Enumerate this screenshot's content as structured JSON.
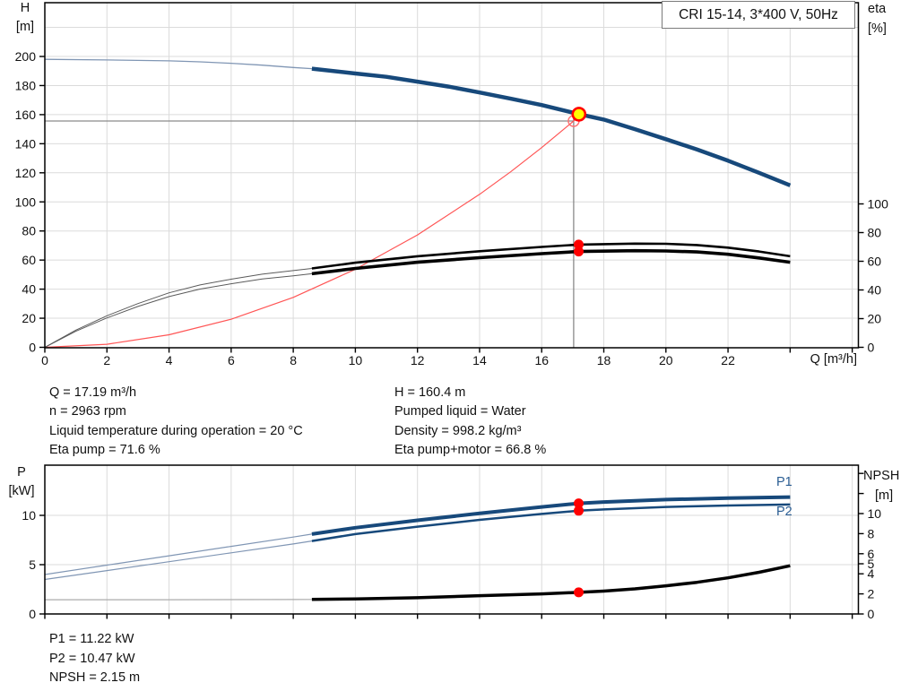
{
  "title_box": {
    "text": "CRI 15-14, 3*400 V, 50Hz"
  },
  "axis_titles": {
    "h": "H",
    "h_unit": "[m]",
    "eta": "eta",
    "eta_unit": "[%]",
    "q": "Q [m³/h]",
    "p": "P",
    "p_unit": "[kW]",
    "npsh": "NPSH",
    "npsh_unit": "[m]"
  },
  "curve_labels": {
    "p1": "P1",
    "p2": "P2"
  },
  "operating_point_info": {
    "left": [
      "Q = 17.19 m³/h",
      "n = 2963 rpm",
      "Liquid temperature during operation = 20 °C",
      "Eta pump = 71.6 %"
    ],
    "right": [
      "H = 160.4 m",
      "Pumped liquid = Water",
      "Density = 998.2 kg/m³",
      "Eta pump+motor = 66.8 %"
    ]
  },
  "footer_info": [
    "P1 = 11.22 kW",
    "P2 = 10.47 kW",
    "NPSH = 2.15 m"
  ],
  "colors": {
    "curve_blue": "#17497B",
    "thin_blue": "#8096B4",
    "black": "#000000",
    "red": "#FF0000",
    "light_red": "#FF7070",
    "gray_line": "#8A8A8A",
    "grid": "#DBDBDB",
    "yellow": "#FFFF00",
    "label_blue": "#2A5D93",
    "thin_gray": "#ABABAB",
    "thin_dark": "#5A5A5A"
  },
  "duty_point": {
    "Q_m3h": 17.19,
    "H_m": 160.4,
    "n_rpm": 2963,
    "eta_pump_pct": 71.6,
    "eta_pump_motor_pct": 66.8,
    "P1_kW": 11.22,
    "P2_kW": 10.47,
    "NPSH_m": 2.15
  },
  "chart_data": [
    {
      "type": "line",
      "title": "CRI 15-14, 3*400 V, 50Hz",
      "xlabel": "Q [m³/h]",
      "ylabel_left": "H [m]",
      "ylabel_right": "eta [%]",
      "x_range": [
        0,
        26.2
      ],
      "y_left_range": [
        0,
        237
      ],
      "y_right_range": [
        0,
        240
      ],
      "grid": {
        "x": [
          2,
          4,
          6,
          8,
          10,
          12,
          14,
          16,
          18,
          20,
          22,
          24,
          26
        ],
        "left": [
          20,
          40,
          60,
          80,
          100,
          120,
          140,
          160,
          180,
          200,
          220
        ]
      },
      "ticks": {
        "x": [
          {
            "v": 0,
            "l": "0"
          },
          {
            "v": 2,
            "l": "2"
          },
          {
            "v": 4,
            "l": "4"
          },
          {
            "v": 6,
            "l": "6"
          },
          {
            "v": 8,
            "l": "8"
          },
          {
            "v": 10,
            "l": "10"
          },
          {
            "v": 12,
            "l": "12"
          },
          {
            "v": 14,
            "l": "14"
          },
          {
            "v": 16,
            "l": "16"
          },
          {
            "v": 18,
            "l": "18"
          },
          {
            "v": 20,
            "l": "20"
          },
          {
            "v": 22,
            "l": "22"
          },
          {
            "v": 24,
            "l": ""
          },
          {
            "v": 26,
            "l": ""
          }
        ],
        "left": [
          {
            "v": 0,
            "l": "0"
          },
          {
            "v": 20,
            "l": "20"
          },
          {
            "v": 40,
            "l": "40"
          },
          {
            "v": 60,
            "l": "60"
          },
          {
            "v": 80,
            "l": "80"
          },
          {
            "v": 100,
            "l": "100"
          },
          {
            "v": 120,
            "l": "120"
          },
          {
            "v": 140,
            "l": "140"
          },
          {
            "v": 160,
            "l": "160"
          },
          {
            "v": 180,
            "l": "180"
          },
          {
            "v": 200,
            "l": "200"
          }
        ],
        "right": [
          {
            "v": 0,
            "l": "0"
          },
          {
            "v": 20,
            "l": "20"
          },
          {
            "v": 40,
            "l": "40"
          },
          {
            "v": 60,
            "l": "60"
          },
          {
            "v": 80,
            "l": "80"
          },
          {
            "v": 100,
            "l": "100"
          }
        ]
      },
      "series": [
        {
          "name": "crosshair-vertical",
          "axis": "left",
          "color": "#8A8A8A",
          "width": 1.3,
          "points": [
            [
              17.03,
              0
            ],
            [
              17.03,
              158
            ]
          ]
        },
        {
          "name": "crosshair-horizontal",
          "axis": "left",
          "color": "#8A8A8A",
          "width": 1.3,
          "points": [
            [
              0,
              155.6
            ],
            [
              17.03,
              155.6
            ]
          ]
        },
        {
          "name": "system-curve",
          "axis": "left",
          "color": "#FF5555",
          "width": 1.2,
          "points": [
            [
              0,
              0
            ],
            [
              2,
              2.1
            ],
            [
              4,
              8.6
            ],
            [
              6,
              19.3
            ],
            [
              8,
              34.3
            ],
            [
              10,
              53.7
            ],
            [
              12,
              77.3
            ],
            [
              14,
              105.2
            ],
            [
              15,
              120.7
            ],
            [
              16,
              137.3
            ],
            [
              17.03,
              155.6
            ],
            [
              17.4,
              162.4
            ]
          ]
        },
        {
          "name": "eta-pump-thin",
          "axis": "right",
          "color": "#5A5A5A",
          "width": 1,
          "points": [
            [
              0,
              0
            ],
            [
              1,
              12
            ],
            [
              2,
              22
            ],
            [
              3,
              30.5
            ],
            [
              4,
              38
            ],
            [
              5,
              43.5
            ],
            [
              6,
              47.5
            ],
            [
              7,
              51
            ],
            [
              8,
              53.5
            ],
            [
              8.6,
              55
            ]
          ]
        },
        {
          "name": "eta-pump-motor-thin",
          "axis": "right",
          "color": "#5A5A5A",
          "width": 1,
          "points": [
            [
              0,
              0
            ],
            [
              1,
              11.2
            ],
            [
              2,
              20.5
            ],
            [
              3,
              28.5
            ],
            [
              4,
              35.4
            ],
            [
              5,
              40.6
            ],
            [
              6,
              44.3
            ],
            [
              7,
              47.6
            ],
            [
              8,
              49.9
            ],
            [
              8.6,
              51.3
            ]
          ]
        },
        {
          "name": "eta-pump-thick",
          "axis": "right",
          "color": "#000000",
          "width": 2.6,
          "points": [
            [
              8.6,
              55
            ],
            [
              10,
              59
            ],
            [
              12,
              63.5
            ],
            [
              14,
              67
            ],
            [
              16,
              70
            ],
            [
              17.19,
              71.6
            ],
            [
              19,
              72.3
            ],
            [
              20,
              72.2
            ],
            [
              21,
              71.3
            ],
            [
              22,
              69.5
            ],
            [
              23,
              66.8
            ],
            [
              24,
              63.5
            ]
          ]
        },
        {
          "name": "eta-pump-motor-thick",
          "axis": "right",
          "color": "#000000",
          "width": 3.6,
          "points": [
            [
              8.6,
              51.3
            ],
            [
              10,
              55
            ],
            [
              12,
              59.3
            ],
            [
              14,
              62.5
            ],
            [
              16,
              65.3
            ],
            [
              17.19,
              66.8
            ],
            [
              19,
              67.4
            ],
            [
              20,
              67.2
            ],
            [
              21,
              66.5
            ],
            [
              22,
              64.9
            ],
            [
              23,
              62.3
            ],
            [
              24,
              59.3
            ]
          ]
        },
        {
          "name": "pump-curve-thin",
          "axis": "left",
          "color": "#8096B4",
          "width": 1.3,
          "points": [
            [
              0,
              198
            ],
            [
              2,
              197.6
            ],
            [
              4,
              197
            ],
            [
              5,
              196.3
            ],
            [
              6,
              195.3
            ],
            [
              7,
              194
            ],
            [
              8,
              192.4
            ],
            [
              8.6,
              191.6
            ]
          ]
        },
        {
          "name": "pump-curve-thick",
          "axis": "left",
          "color": "#17497B",
          "width": 4.5,
          "points": [
            [
              8.6,
              191.6
            ],
            [
              10,
              188.3
            ],
            [
              11,
              186
            ],
            [
              12,
              182.7
            ],
            [
              13,
              179.3
            ],
            [
              14,
              175.2
            ],
            [
              15,
              171
            ],
            [
              16,
              166.6
            ],
            [
              17.19,
              160.4
            ],
            [
              18,
              156.6
            ],
            [
              19,
              150
            ],
            [
              20,
              143.1
            ],
            [
              21,
              136
            ],
            [
              22,
              128.3
            ],
            [
              23,
              120
            ],
            [
              24,
              111.4
            ]
          ]
        }
      ],
      "markers": [
        {
          "name": "requested-duty-ring",
          "axis": "left",
          "q": 17.03,
          "v": 155.6,
          "r": 6,
          "fill": "none",
          "stroke": "#FF7070",
          "sw": 1.4
        },
        {
          "name": "duty-point",
          "axis": "left",
          "q": 17.2,
          "v": 160.3,
          "r": 7,
          "fill": "#FFFF00",
          "stroke": "#FF0000",
          "sw": 2.6
        },
        {
          "name": "eta-pump-point",
          "axis": "right",
          "q": 17.19,
          "v": 71.6,
          "r": 5.5,
          "fill": "#FF0000"
        },
        {
          "name": "eta-pump-motor-point",
          "axis": "right",
          "q": 17.19,
          "v": 66.8,
          "r": 5.5,
          "fill": "#FF0000"
        }
      ]
    },
    {
      "type": "line",
      "title": "Power and NPSH curves",
      "xlabel": "Q [m³/h]",
      "ylabel_left": "P [kW]",
      "ylabel_right": "NPSH [m]",
      "x_range": [
        0,
        26.2
      ],
      "y_left_range": [
        0,
        15.1
      ],
      "y_right_range": [
        0,
        14.8
      ],
      "grid": {
        "x": [
          2,
          4,
          6,
          8,
          10,
          12,
          14,
          16,
          18,
          20,
          22,
          24,
          26
        ],
        "left": [
          5,
          10
        ]
      },
      "ticks": {
        "x": [
          {
            "v": 0,
            "l": ""
          },
          {
            "v": 2,
            "l": ""
          },
          {
            "v": 4,
            "l": ""
          },
          {
            "v": 6,
            "l": ""
          },
          {
            "v": 8,
            "l": ""
          },
          {
            "v": 10,
            "l": ""
          },
          {
            "v": 12,
            "l": ""
          },
          {
            "v": 14,
            "l": ""
          },
          {
            "v": 16,
            "l": ""
          },
          {
            "v": 18,
            "l": ""
          },
          {
            "v": 20,
            "l": ""
          },
          {
            "v": 22,
            "l": ""
          },
          {
            "v": 24,
            "l": ""
          },
          {
            "v": 26,
            "l": ""
          }
        ],
        "left": [
          {
            "v": 0,
            "l": "0"
          },
          {
            "v": 5,
            "l": "5"
          },
          {
            "v": 10,
            "l": "10"
          }
        ],
        "right": [
          {
            "v": 0,
            "l": "0"
          },
          {
            "v": 2,
            "l": "2"
          },
          {
            "v": 4,
            "l": "4"
          },
          {
            "v": 5,
            "l": "5"
          },
          {
            "v": 6,
            "l": "6"
          },
          {
            "v": 8,
            "l": "8"
          },
          {
            "v": 10,
            "l": "10"
          },
          {
            "v": 12,
            "l": ""
          },
          {
            "v": 14,
            "l": ""
          }
        ]
      },
      "series": [
        {
          "name": "npsh-thin",
          "axis": "right",
          "color": "#ABABAB",
          "width": 1.2,
          "points": [
            [
              0,
              1.42
            ],
            [
              4,
              1.42
            ],
            [
              8,
              1.44
            ],
            [
              8.6,
              1.45
            ]
          ]
        },
        {
          "name": "npsh-thick",
          "axis": "right",
          "color": "#000000",
          "width": 3.5,
          "points": [
            [
              8.6,
              1.45
            ],
            [
              10,
              1.5
            ],
            [
              12,
              1.62
            ],
            [
              14,
              1.82
            ],
            [
              16,
              2.0
            ],
            [
              17.19,
              2.15
            ],
            [
              18,
              2.28
            ],
            [
              19,
              2.5
            ],
            [
              20,
              2.8
            ],
            [
              21,
              3.15
            ],
            [
              22,
              3.6
            ],
            [
              23,
              4.15
            ],
            [
              24,
              4.8
            ]
          ]
        },
        {
          "name": "p2-thin",
          "axis": "left",
          "color": "#8096B4",
          "width": 1.2,
          "points": [
            [
              0,
              3.5
            ],
            [
              2,
              4.4
            ],
            [
              4,
              5.3
            ],
            [
              6,
              6.2
            ],
            [
              8,
              7.1
            ],
            [
              8.6,
              7.4
            ]
          ]
        },
        {
          "name": "p2-thick",
          "axis": "left",
          "color": "#17497B",
          "width": 2.5,
          "points": [
            [
              8.6,
              7.4
            ],
            [
              10,
              8.1
            ],
            [
              12,
              8.85
            ],
            [
              14,
              9.55
            ],
            [
              16,
              10.15
            ],
            [
              17.19,
              10.47
            ],
            [
              18,
              10.6
            ],
            [
              20,
              10.85
            ],
            [
              22,
              11.0
            ],
            [
              24,
              11.1
            ]
          ]
        },
        {
          "name": "p1-thin",
          "axis": "left",
          "color": "#8096B4",
          "width": 1.2,
          "points": [
            [
              0,
              4.0
            ],
            [
              2,
              4.95
            ],
            [
              4,
              5.9
            ],
            [
              6,
              6.85
            ],
            [
              8,
              7.8
            ],
            [
              8.6,
              8.1
            ]
          ]
        },
        {
          "name": "p1-thick",
          "axis": "left",
          "color": "#17497B",
          "width": 4,
          "points": [
            [
              8.6,
              8.1
            ],
            [
              10,
              8.75
            ],
            [
              12,
              9.5
            ],
            [
              14,
              10.2
            ],
            [
              16,
              10.85
            ],
            [
              17.19,
              11.22
            ],
            [
              18,
              11.35
            ],
            [
              20,
              11.6
            ],
            [
              22,
              11.75
            ],
            [
              24,
              11.85
            ]
          ]
        }
      ],
      "markers": [
        {
          "name": "p1-point",
          "axis": "left",
          "q": 17.19,
          "v": 11.22,
          "r": 5.5,
          "fill": "#FF0000"
        },
        {
          "name": "p2-point",
          "axis": "left",
          "q": 17.19,
          "v": 10.47,
          "r": 5.5,
          "fill": "#FF0000"
        },
        {
          "name": "npsh-point",
          "axis": "right",
          "q": 17.19,
          "v": 2.15,
          "r": 5.5,
          "fill": "#FF0000"
        }
      ]
    }
  ]
}
